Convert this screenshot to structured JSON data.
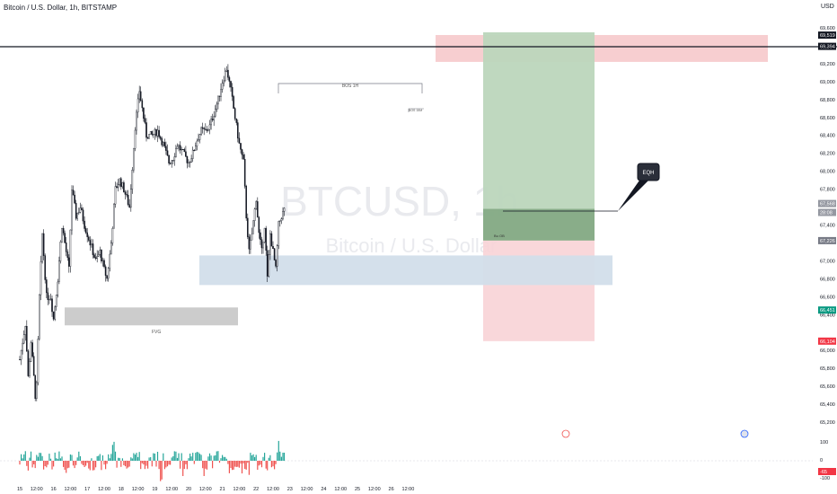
{
  "header": {
    "symbol_line": "Bitcoin / U.S. Dollar, 1h, BITSTAMP",
    "currency": "USD"
  },
  "watermark": {
    "ticker": "BTCUSD, 1h",
    "name": "Bitcoin / U.S. Dollar"
  },
  "colors": {
    "up": "#26a69a",
    "down": "#ef5350",
    "up_candle": "#ffffff",
    "down_candle": "#131722",
    "tp_zone": "#bcd6bc",
    "sl_zone": "#f8d3d6",
    "fvg_blue": "#d2deea",
    "fvg_gray": "#cccccc",
    "resistance": "#f6c6c8"
  },
  "annotations": {
    "bos_label": "BOS 1H",
    "bos_small_label": "BOS 15M",
    "fvg_label": "FVG",
    "eqh_label": "EQH",
    "ob_label": "Bu OB"
  },
  "price_axis": {
    "ticks": [
      "69,600",
      "69,200",
      "69,000",
      "68,800",
      "68,600",
      "68,400",
      "68,200",
      "68,000",
      "67,800",
      "67,400",
      "67,000",
      "66,800",
      "66,600",
      "66,400",
      "66,000",
      "65,800",
      "65,600",
      "65,400",
      "65,200"
    ],
    "badges": [
      {
        "label": "69,519",
        "color": "#131722"
      },
      {
        "label": "69,394",
        "color": "#131722"
      },
      {
        "label": "67,568",
        "color": "#9598a1"
      },
      {
        "label": "28:08",
        "color": "#9598a1"
      },
      {
        "label": "67,226",
        "color": "#787b86"
      },
      {
        "label": "66,451",
        "color": "#089981"
      },
      {
        "label": "66,104",
        "color": "#f23645"
      }
    ],
    "volume_ticks": [
      "100",
      "0",
      "-100"
    ],
    "volume_badge": "-65"
  },
  "time_axis": {
    "ticks": [
      "15",
      "12:00",
      "16",
      "12:00",
      "17",
      "12:00",
      "18",
      "12:00",
      "19",
      "12:00",
      "20",
      "12:00",
      "21",
      "12:00",
      "22",
      "12:00",
      "23",
      "12:00",
      "24",
      "12:00",
      "25",
      "12:00",
      "26",
      "12:00"
    ]
  },
  "chart_data": {
    "type": "candlestick",
    "symbol": "BTCUSD",
    "interval": "1h",
    "exchange": "BITSTAMP",
    "ylim": [
      65100,
      69750
    ],
    "x_start": "15 Jun",
    "x_end": "26 Jun 12:00",
    "horizontal_line": 69394,
    "trade": {
      "entry": 67226,
      "take_profit": 69519,
      "stop_loss": 66104
    },
    "zones": {
      "resistance": [
        69220,
        69520
      ],
      "fvg_blue": [
        66730,
        67060
      ],
      "fvg_gray": [
        66280,
        66480
      ]
    },
    "waypoints": [
      {
        "t": "15 00:00",
        "p": 65900
      },
      {
        "t": "15 04:00",
        "p": 66300
      },
      {
        "t": "15 06:00",
        "p": 65700
      },
      {
        "t": "15 08:00",
        "p": 66100
      },
      {
        "t": "15 11:00",
        "p": 65500
      },
      {
        "t": "15 12:00",
        "p": 65600
      },
      {
        "t": "15 14:00",
        "p": 66600
      },
      {
        "t": "15 16:00",
        "p": 67300
      },
      {
        "t": "15 19:00",
        "p": 66600
      },
      {
        "t": "15 22:00",
        "p": 66600
      },
      {
        "t": "16 00:00",
        "p": 66350
      },
      {
        "t": "16 03:00",
        "p": 66800
      },
      {
        "t": "16 06:00",
        "p": 67400
      },
      {
        "t": "16 09:00",
        "p": 67100
      },
      {
        "t": "16 11:00",
        "p": 66900
      },
      {
        "t": "16 13:00",
        "p": 67800
      },
      {
        "t": "16 16:00",
        "p": 67500
      },
      {
        "t": "16 19:00",
        "p": 67600
      },
      {
        "t": "16 22:00",
        "p": 67400
      },
      {
        "t": "17 02:00",
        "p": 67200
      },
      {
        "t": "17 06:00",
        "p": 67000
      },
      {
        "t": "17 09:00",
        "p": 67100
      },
      {
        "t": "17 12:00",
        "p": 66900
      },
      {
        "t": "17 14:00",
        "p": 66800
      },
      {
        "t": "17 17:00",
        "p": 67200
      },
      {
        "t": "17 20:00",
        "p": 67800
      },
      {
        "t": "17 23:00",
        "p": 67900
      },
      {
        "t": "18 02:00",
        "p": 67800
      },
      {
        "t": "18 06:00",
        "p": 67600
      },
      {
        "t": "18 10:00",
        "p": 68500
      },
      {
        "t": "18 13:00",
        "p": 68900
      },
      {
        "t": "18 15:00",
        "p": 68700
      },
      {
        "t": "18 18:00",
        "p": 68400
      },
      {
        "t": "18 22:00",
        "p": 68400
      },
      {
        "t": "19 02:00",
        "p": 68450
      },
      {
        "t": "19 06:00",
        "p": 68300
      },
      {
        "t": "19 10:00",
        "p": 68100
      },
      {
        "t": "19 13:00",
        "p": 68150
      },
      {
        "t": "19 16:00",
        "p": 68300
      },
      {
        "t": "19 20:00",
        "p": 68200
      },
      {
        "t": "20 00:00",
        "p": 68100
      },
      {
        "t": "20 03:00",
        "p": 68200
      },
      {
        "t": "20 06:00",
        "p": 68350
      },
      {
        "t": "20 09:00",
        "p": 68450
      },
      {
        "t": "20 12:00",
        "p": 68450
      },
      {
        "t": "20 15:00",
        "p": 68500
      },
      {
        "t": "20 18:00",
        "p": 68650
      },
      {
        "t": "20 21:00",
        "p": 68800
      },
      {
        "t": "21 00:00",
        "p": 69000
      },
      {
        "t": "21 03:00",
        "p": 69150
      },
      {
        "t": "21 06:00",
        "p": 68900
      },
      {
        "t": "21 09:00",
        "p": 68600
      },
      {
        "t": "21 12:00",
        "p": 68300
      },
      {
        "t": "21 15:00",
        "p": 68100
      },
      {
        "t": "21 17:00",
        "p": 67500
      },
      {
        "t": "21 19:00",
        "p": 67100
      },
      {
        "t": "21 21:00",
        "p": 67300
      },
      {
        "t": "22 00:00",
        "p": 67700
      },
      {
        "t": "22 02:00",
        "p": 67300
      },
      {
        "t": "22 04:00",
        "p": 67100
      },
      {
        "t": "22 06:00",
        "p": 67400
      },
      {
        "t": "22 08:00",
        "p": 66800
      },
      {
        "t": "22 10:00",
        "p": 67300
      },
      {
        "t": "22 12:00",
        "p": 67100
      },
      {
        "t": "22 14:00",
        "p": 66900
      },
      {
        "t": "22 16:00",
        "p": 67400
      },
      {
        "t": "22 18:00",
        "p": 67500
      },
      {
        "t": "22 20:00",
        "p": 67568
      }
    ]
  }
}
